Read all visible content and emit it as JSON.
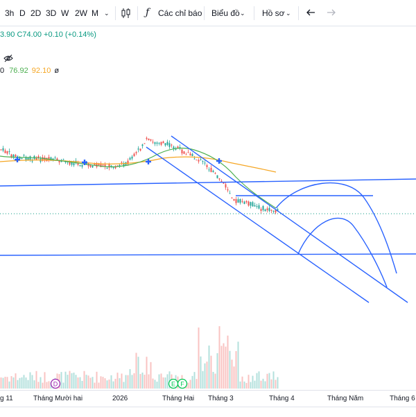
{
  "toolbar": {
    "intervals": [
      "3h",
      "D",
      "2D",
      "3D",
      "W",
      "2W",
      "M"
    ],
    "indicators_label": "Các chỉ báo",
    "chart_type_label": "Biểu đồ",
    "profile_label": "Hồ sơ"
  },
  "legend": {
    "price_prefix": "3.90",
    "close": "C74.00",
    "change": "+0.10 (+0.14%)",
    "ma_prefix": "0",
    "ma1": "76.92",
    "ma2": "92.10",
    "ma3": "ø"
  },
  "colors": {
    "up": "#26a69a",
    "down": "#ef5350",
    "ma_fast": "#4caf50",
    "ma_slow": "#f5a623",
    "drawing": "#2962ff",
    "marker_d": "#9c27b0",
    "marker_e": "#00c853"
  },
  "icons": [
    "candlestick-icon",
    "function-icon",
    "undo-icon",
    "redo-icon",
    "eye-off-icon",
    "chevron-down-icon"
  ],
  "chart_data": {
    "type": "candlestick",
    "x_tick_labels": [
      "g 11",
      "Tháng Mười hai",
      "2026",
      "Tháng Hai",
      "Tháng 3",
      "Tháng 4",
      "Tháng Năm",
      "Tháng 6"
    ],
    "event_markers": [
      "D",
      "E",
      "F"
    ],
    "signal_markers": 4,
    "drawings": [
      "horizontal lines",
      "descending parallel channel",
      "projected arcs"
    ]
  }
}
